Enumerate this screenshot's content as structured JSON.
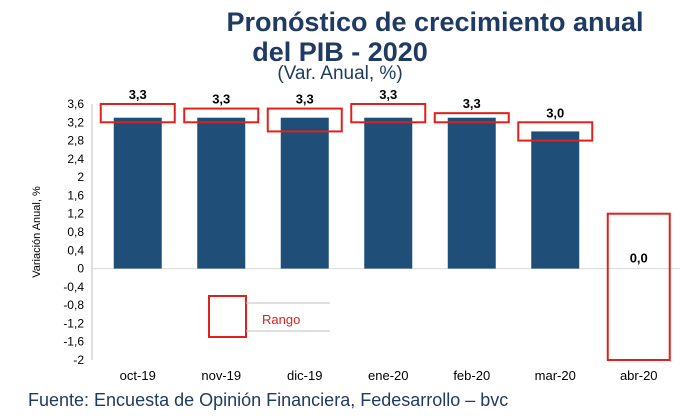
{
  "title_line1": "Pronóstico de crecimiento anual",
  "title_line2": "del PIB - 2020",
  "subtitle": "(Var. Anual, %)",
  "source": "Fuente: Encuesta de Opinión Financiera, Fedesarrollo – bvc",
  "colors": {
    "bar": "#1f4e79",
    "range": "#e0201c",
    "title": "#1f3b63",
    "grid": "#d9d9d9"
  },
  "chart_data": {
    "type": "bar",
    "title": "Pronóstico de crecimiento anual del PIB - 2020",
    "subtitle": "(Var. Anual, %)",
    "xlabel": "",
    "ylabel": "Variación Anual, %",
    "categories": [
      "oct-19",
      "nov-19",
      "dic-19",
      "ene-20",
      "feb-20",
      "mar-20",
      "abr-20"
    ],
    "values": [
      3.3,
      3.3,
      3.3,
      3.3,
      3.3,
      3.0,
      0.0
    ],
    "value_labels": [
      "3,3",
      "3,3",
      "3,3",
      "3,3",
      "3,3",
      "3,0",
      "0,0"
    ],
    "ranges": [
      [
        3.2,
        3.6
      ],
      [
        3.2,
        3.5
      ],
      [
        3.0,
        3.5
      ],
      [
        3.2,
        3.6
      ],
      [
        3.2,
        3.4
      ],
      [
        2.8,
        3.2
      ],
      [
        -2.0,
        1.2
      ]
    ],
    "range_legend_label": "Rango",
    "ylim": [
      -2,
      3.6
    ],
    "yticks": [
      "3,6",
      "3,2",
      "2,8",
      "2,4",
      "2",
      "1,6",
      "1,2",
      "0,8",
      "0,4",
      "0",
      "-0,4",
      "-0,8",
      "-1,2",
      "-1,6",
      "-2"
    ],
    "ytick_values": [
      3.6,
      3.2,
      2.8,
      2.4,
      2.0,
      1.6,
      1.2,
      0.8,
      0.4,
      0.0,
      -0.4,
      -0.8,
      -1.2,
      -1.6,
      -2.0
    ],
    "grid": false
  }
}
